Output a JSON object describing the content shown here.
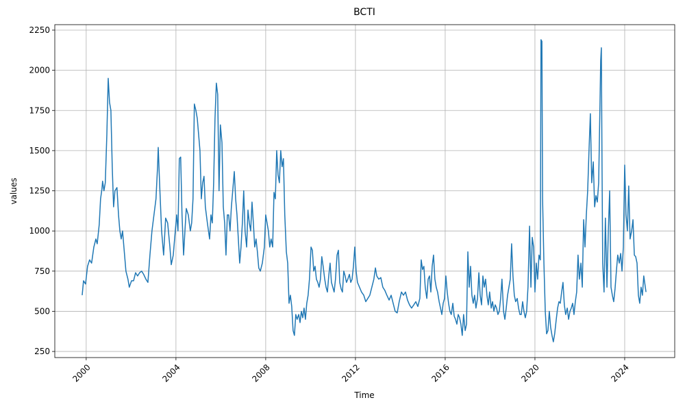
{
  "chart_data": {
    "type": "line",
    "title": "BCTI",
    "x_label": "Time",
    "y_label": "values",
    "color": "#1f77b4",
    "grid": true,
    "xlim": [
      1998.6,
      2026.23
    ],
    "ylim": [
      212,
      2284
    ],
    "xticks": [
      2000,
      2004,
      2008,
      2012,
      2016,
      2020,
      2024
    ],
    "yticks": [
      250,
      500,
      750,
      1000,
      1250,
      1500,
      1750,
      2000,
      2250
    ],
    "x": [
      1999.82,
      1999.88,
      1999.97,
      2000.06,
      2000.15,
      2000.24,
      2000.34,
      2000.43,
      2000.49,
      2000.58,
      2000.64,
      2000.7,
      2000.73,
      2000.79,
      2000.85,
      2000.92,
      2000.98,
      2001.04,
      2001.1,
      2001.16,
      2001.22,
      2001.28,
      2001.37,
      2001.44,
      2001.5,
      2001.56,
      2001.62,
      2001.68,
      2001.77,
      2001.86,
      2001.92,
      2002.02,
      2002.11,
      2002.2,
      2002.29,
      2002.38,
      2002.47,
      2002.56,
      2002.66,
      2002.75,
      2002.84,
      2002.93,
      2003.02,
      2003.11,
      2003.18,
      2003.21,
      2003.27,
      2003.36,
      2003.45,
      2003.54,
      2003.63,
      2003.73,
      2003.79,
      2003.88,
      2003.97,
      2004.03,
      2004.09,
      2004.15,
      2004.21,
      2004.27,
      2004.34,
      2004.4,
      2004.46,
      2004.55,
      2004.64,
      2004.7,
      2004.76,
      2004.82,
      2004.89,
      2004.95,
      2005.01,
      2005.07,
      2005.13,
      2005.19,
      2005.25,
      2005.31,
      2005.4,
      2005.5,
      2005.56,
      2005.62,
      2005.68,
      2005.74,
      2005.8,
      2005.86,
      2005.92,
      2005.98,
      2006.05,
      2006.11,
      2006.17,
      2006.23,
      2006.29,
      2006.35,
      2006.41,
      2006.47,
      2006.53,
      2006.6,
      2006.66,
      2006.72,
      2006.78,
      2006.84,
      2006.9,
      2006.96,
      2007.02,
      2007.08,
      2007.15,
      2007.21,
      2007.27,
      2007.33,
      2007.39,
      2007.45,
      2007.51,
      2007.57,
      2007.63,
      2007.69,
      2007.76,
      2007.85,
      2007.94,
      2008.0,
      2008.06,
      2008.12,
      2008.18,
      2008.24,
      2008.31,
      2008.37,
      2008.43,
      2008.49,
      2008.55,
      2008.61,
      2008.67,
      2008.73,
      2008.79,
      2008.85,
      2008.92,
      2008.98,
      2009.04,
      2009.1,
      2009.16,
      2009.22,
      2009.28,
      2009.34,
      2009.4,
      2009.47,
      2009.53,
      2009.59,
      2009.65,
      2009.71,
      2009.77,
      2009.83,
      2009.89,
      2009.95,
      2010.02,
      2010.08,
      2010.14,
      2010.2,
      2010.26,
      2010.32,
      2010.38,
      2010.44,
      2010.5,
      2010.56,
      2010.63,
      2010.69,
      2010.75,
      2010.81,
      2010.87,
      2010.93,
      2010.99,
      2011.05,
      2011.11,
      2011.18,
      2011.24,
      2011.3,
      2011.36,
      2011.42,
      2011.48,
      2011.54,
      2011.6,
      2011.66,
      2011.73,
      2011.79,
      2011.85,
      2011.91,
      2011.97,
      2012.03,
      2012.09,
      2012.18,
      2012.27,
      2012.37,
      2012.46,
      2012.55,
      2012.64,
      2012.73,
      2012.82,
      2012.89,
      2012.95,
      2013.04,
      2013.13,
      2013.22,
      2013.31,
      2013.4,
      2013.5,
      2013.59,
      2013.68,
      2013.77,
      2013.86,
      2013.95,
      2014.05,
      2014.14,
      2014.23,
      2014.32,
      2014.41,
      2014.5,
      2014.6,
      2014.69,
      2014.78,
      2014.87,
      2014.93,
      2014.99,
      2015.05,
      2015.11,
      2015.18,
      2015.24,
      2015.3,
      2015.36,
      2015.42,
      2015.48,
      2015.54,
      2015.6,
      2015.66,
      2015.73,
      2015.79,
      2015.85,
      2015.91,
      2015.97,
      2016.03,
      2016.09,
      2016.15,
      2016.21,
      2016.27,
      2016.34,
      2016.4,
      2016.46,
      2016.52,
      2016.58,
      2016.64,
      2016.7,
      2016.76,
      2016.82,
      2016.89,
      2016.95,
      2017.01,
      2017.07,
      2017.13,
      2017.19,
      2017.25,
      2017.31,
      2017.37,
      2017.44,
      2017.5,
      2017.56,
      2017.62,
      2017.68,
      2017.74,
      2017.8,
      2017.86,
      2017.92,
      2017.98,
      2018.05,
      2018.11,
      2018.17,
      2018.23,
      2018.29,
      2018.35,
      2018.41,
      2018.47,
      2018.53,
      2018.6,
      2018.66,
      2018.72,
      2018.78,
      2018.84,
      2018.9,
      2018.96,
      2019.02,
      2019.08,
      2019.14,
      2019.21,
      2019.27,
      2019.33,
      2019.39,
      2019.45,
      2019.51,
      2019.57,
      2019.63,
      2019.69,
      2019.76,
      2019.82,
      2019.88,
      2019.94,
      2020.0,
      2020.06,
      2020.12,
      2020.18,
      2020.24,
      2020.27,
      2020.31,
      2020.34,
      2020.4,
      2020.46,
      2020.52,
      2020.58,
      2020.64,
      2020.7,
      2020.76,
      2020.82,
      2020.88,
      2020.95,
      2021.01,
      2021.07,
      2021.13,
      2021.19,
      2021.25,
      2021.31,
      2021.37,
      2021.44,
      2021.5,
      2021.56,
      2021.62,
      2021.68,
      2021.74,
      2021.8,
      2021.86,
      2021.92,
      2021.98,
      2022.05,
      2022.11,
      2022.17,
      2022.23,
      2022.29,
      2022.35,
      2022.41,
      2022.47,
      2022.53,
      2022.6,
      2022.66,
      2022.72,
      2022.78,
      2022.84,
      2022.9,
      2022.93,
      2022.96,
      2022.99,
      2023.02,
      2023.08,
      2023.14,
      2023.21,
      2023.27,
      2023.33,
      2023.39,
      2023.45,
      2023.51,
      2023.57,
      2023.63,
      2023.69,
      2023.76,
      2023.82,
      2023.88,
      2023.94,
      2024.0,
      2024.06,
      2024.12,
      2024.18,
      2024.24,
      2024.31,
      2024.37,
      2024.43,
      2024.49,
      2024.55,
      2024.61,
      2024.67,
      2024.73,
      2024.79,
      2024.85,
      2024.92,
      2024.95
    ],
    "values": [
      600,
      690,
      670,
      780,
      820,
      800,
      900,
      950,
      920,
      1040,
      1200,
      1260,
      1310,
      1250,
      1300,
      1600,
      1950,
      1800,
      1750,
      1400,
      1150,
      1250,
      1270,
      1100,
      1000,
      950,
      1000,
      900,
      750,
      700,
      650,
      690,
      690,
      740,
      720,
      740,
      750,
      730,
      700,
      680,
      850,
      1000,
      1100,
      1200,
      1400,
      1520,
      1300,
      1000,
      850,
      1080,
      1050,
      900,
      790,
      850,
      1000,
      1100,
      1000,
      1450,
      1460,
      1100,
      850,
      1000,
      1140,
      1100,
      1000,
      1050,
      1200,
      1790,
      1750,
      1700,
      1600,
      1500,
      1200,
      1300,
      1340,
      1150,
      1050,
      950,
      1100,
      1050,
      1300,
      1700,
      1920,
      1850,
      1250,
      1660,
      1550,
      1150,
      1050,
      850,
      1100,
      1100,
      1000,
      1150,
      1250,
      1370,
      1200,
      1100,
      950,
      800,
      900,
      1050,
      1250,
      1000,
      900,
      1130,
      1050,
      1000,
      1180,
      1050,
      900,
      950,
      870,
      770,
      750,
      800,
      900,
      1100,
      1050,
      1000,
      900,
      950,
      900,
      1240,
      1200,
      1500,
      1350,
      1300,
      1500,
      1400,
      1450,
      1100,
      870,
      800,
      550,
      600,
      530,
      380,
      350,
      480,
      450,
      480,
      430,
      500,
      460,
      520,
      450,
      550,
      600,
      700,
      900,
      880,
      750,
      780,
      700,
      680,
      650,
      700,
      840,
      780,
      700,
      650,
      620,
      720,
      800,
      680,
      650,
      620,
      700,
      850,
      880,
      680,
      640,
      620,
      750,
      720,
      680,
      700,
      730,
      680,
      700,
      780,
      900,
      750,
      680,
      650,
      620,
      600,
      560,
      580,
      600,
      650,
      700,
      770,
      720,
      700,
      710,
      650,
      630,
      600,
      570,
      600,
      550,
      500,
      490,
      560,
      620,
      600,
      620,
      570,
      540,
      520,
      540,
      560,
      530,
      580,
      820,
      760,
      780,
      650,
      580,
      700,
      720,
      620,
      780,
      850,
      700,
      650,
      620,
      560,
      520,
      480,
      550,
      580,
      720,
      620,
      550,
      500,
      480,
      550,
      470,
      450,
      420,
      480,
      460,
      420,
      350,
      480,
      380,
      420,
      870,
      650,
      780,
      600,
      550,
      600,
      520,
      580,
      740,
      600,
      540,
      720,
      650,
      700,
      600,
      540,
      620,
      520,
      560,
      500,
      540,
      520,
      480,
      500,
      580,
      700,
      500,
      450,
      520,
      600,
      650,
      700,
      920,
      720,
      600,
      560,
      580,
      520,
      480,
      480,
      560,
      500,
      460,
      500,
      650,
      1030,
      650,
      960,
      900,
      620,
      800,
      700,
      850,
      820,
      2190,
      2180,
      1200,
      800,
      500,
      360,
      380,
      500,
      400,
      350,
      310,
      360,
      450,
      520,
      560,
      550,
      620,
      680,
      540,
      480,
      520,
      450,
      500,
      520,
      550,
      480,
      560,
      620,
      850,
      700,
      800,
      650,
      1070,
      900,
      1100,
      1250,
      1500,
      1730,
      1300,
      1430,
      1150,
      1220,
      1180,
      1300,
      1800,
      2060,
      2140,
      1400,
      800,
      620,
      1080,
      650,
      1000,
      1250,
      650,
      600,
      560,
      640,
      750,
      850,
      800,
      860,
      750,
      900,
      1410,
      1100,
      1000,
      1280,
      950,
      1000,
      1070,
      850,
      840,
      800,
      600,
      550,
      650,
      600,
      720,
      650,
      620
    ]
  }
}
